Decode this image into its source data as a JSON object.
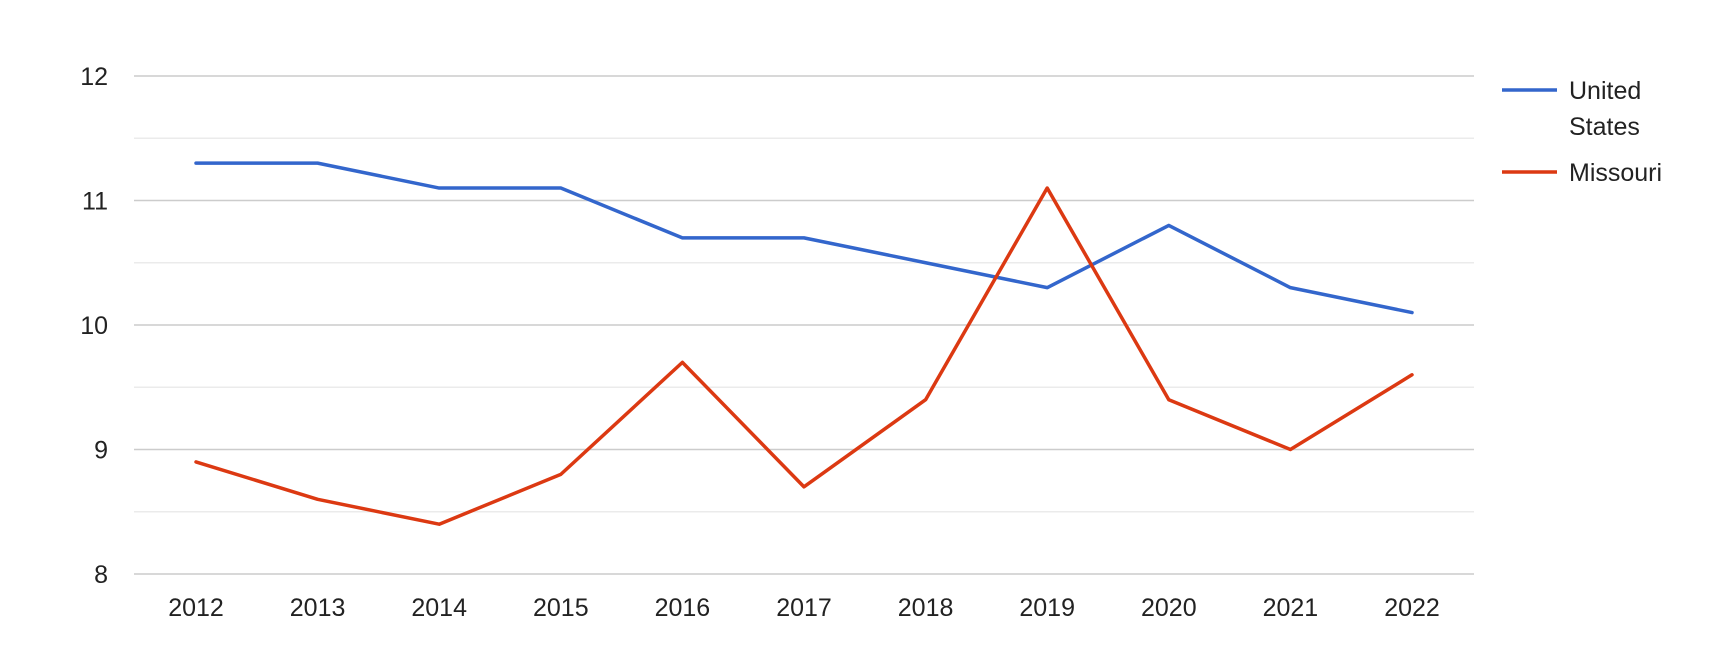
{
  "chart_data": {
    "type": "line",
    "title": "",
    "xlabel": "",
    "ylabel": "",
    "x": [
      "2012",
      "2013",
      "2014",
      "2015",
      "2016",
      "2017",
      "2018",
      "2019",
      "2020",
      "2021",
      "2022"
    ],
    "ylim": [
      8,
      12
    ],
    "yticks": [
      "8",
      "9",
      "10",
      "11",
      "12"
    ],
    "grid": true,
    "legend_position": "right",
    "series": [
      {
        "name": "United States",
        "legend_lines": [
          "United",
          "States"
        ],
        "color": "#3366cc",
        "values": [
          11.3,
          11.3,
          11.1,
          11.1,
          10.7,
          10.7,
          10.5,
          10.3,
          10.8,
          10.3,
          10.1
        ]
      },
      {
        "name": "Missouri",
        "legend_lines": [
          "Missouri"
        ],
        "color": "#dc3912",
        "values": [
          8.9,
          8.6,
          8.4,
          8.8,
          9.7,
          8.7,
          9.4,
          11.1,
          9.4,
          9.0,
          9.6
        ]
      }
    ]
  }
}
